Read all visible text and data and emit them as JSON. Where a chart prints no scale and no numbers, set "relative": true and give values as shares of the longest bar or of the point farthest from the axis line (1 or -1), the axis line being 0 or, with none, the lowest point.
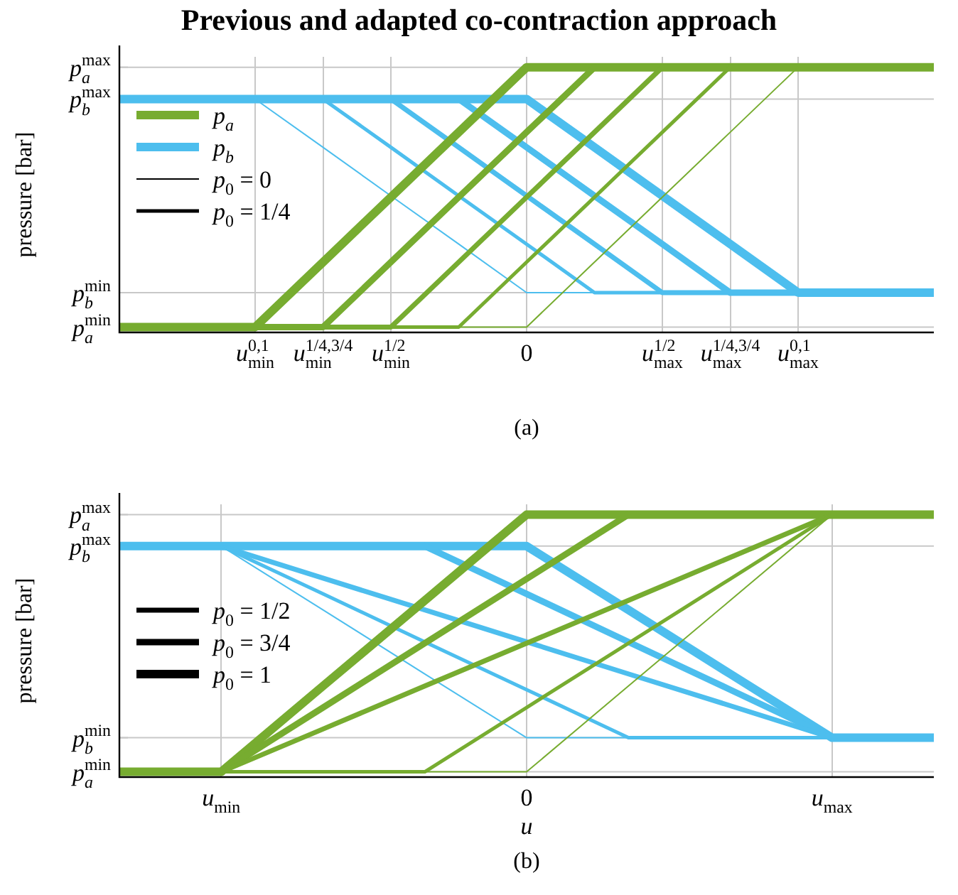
{
  "chart_data": [
    {
      "type": "line",
      "title": "Previous and adapted co-contraction approach",
      "ylabel": "pressure [bar]",
      "relative": true,
      "grid": "x",
      "legend": "top left",
      "marker": "none",
      "categories": [
        null,
        null,
        "u$_{min}$$^{0,1}$",
        "u$_{min}$$^{1/4,3/4}$",
        "u$_{min}$$^{1/2}$",
        null,
        "0",
        null,
        "u$_{max}$$^{1/2}$",
        "u$_{max}$$^{1/4,3/4}$",
        "u$_{max}$$^{0,1}$",
        null,
        null
      ],
      "ref_lines": [
        {
          "axis": "y",
          "value": 1,
          "label": "p$_{a}$$^{max}$",
          "color": "#c8c8c8"
        },
        {
          "axis": "y",
          "value": 0.88,
          "label": "p$_{b}$$^{max}$",
          "color": "#c8c8c8"
        },
        {
          "axis": "y",
          "value": 0.15,
          "label": "p$_{b}$$^{min}$",
          "color": "#c8c8c8"
        },
        {
          "axis": "y",
          "value": 0.02,
          "label": "p$_{a}$$^{min}$",
          "color": "#c8c8c8"
        }
      ],
      "series": [
        {
          "color": "#77ac30",
          "values": [
            0.02,
            0.02,
            0.02,
            0.02,
            0.02,
            0.02,
            0.02,
            0.265,
            0.51,
            0.755,
            1,
            1,
            1
          ]
        },
        {
          "color": "#77ac30",
          "values": [
            0.02,
            0.02,
            0.02,
            0.02,
            0.02,
            0.02,
            0.265,
            0.51,
            0.755,
            1,
            1,
            1,
            1
          ]
        },
        {
          "color": "#77ac30",
          "values": [
            0.02,
            0.02,
            0.02,
            0.02,
            0.02,
            0.265,
            0.51,
            0.755,
            1,
            1,
            1,
            1,
            1
          ]
        },
        {
          "color": "#77ac30",
          "values": [
            0.02,
            0.02,
            0.02,
            0.02,
            0.265,
            0.51,
            0.755,
            1,
            1,
            1,
            1,
            1,
            1
          ]
        },
        {
          "name": "p$_{a}$",
          "color": "#77ac30",
          "values": [
            0.02,
            0.02,
            0.02,
            0.265,
            0.51,
            0.755,
            1,
            1,
            1,
            1,
            1,
            1,
            1
          ]
        },
        {
          "color": "#4dbeee",
          "values": [
            0.88,
            0.88,
            0.88,
            0.698,
            0.515,
            0.333,
            0.15,
            0.15,
            0.15,
            0.15,
            0.15,
            0.15,
            0.15
          ]
        },
        {
          "color": "#4dbeee",
          "values": [
            0.88,
            0.88,
            0.88,
            0.88,
            0.698,
            0.515,
            0.333,
            0.15,
            0.15,
            0.15,
            0.15,
            0.15,
            0.15
          ]
        },
        {
          "color": "#4dbeee",
          "values": [
            0.88,
            0.88,
            0.88,
            0.88,
            0.88,
            0.698,
            0.515,
            0.333,
            0.15,
            0.15,
            0.15,
            0.15,
            0.15
          ]
        },
        {
          "color": "#4dbeee",
          "values": [
            0.88,
            0.88,
            0.88,
            0.88,
            0.88,
            0.88,
            0.698,
            0.515,
            0.333,
            0.15,
            0.15,
            0.15,
            0.15
          ]
        },
        {
          "name": "p$_{b}$",
          "color": "#4dbeee",
          "values": [
            0.88,
            0.88,
            0.88,
            0.88,
            0.88,
            0.88,
            0.88,
            0.698,
            0.515,
            0.333,
            0.15,
            0.15,
            0.15
          ]
        }
      ],
      "annotations": [
        "p$_{0}$ = 0",
        "p$_{0}$ = 1/4",
        "(a)"
      ]
    },
    {
      "type": "line",
      "ylabel": "pressure [bar]",
      "xlabel": "u",
      "relative": true,
      "grid": "x",
      "legend": "left",
      "marker": "none",
      "categories": [
        null,
        "u$_{min}$",
        null,
        null,
        "0",
        null,
        null,
        "u$_{max}$",
        null
      ],
      "ref_lines": [
        {
          "axis": "y",
          "value": 1,
          "label": "p$_{a}$$^{max}$",
          "color": "#c8c8c8"
        },
        {
          "axis": "y",
          "value": 0.88,
          "label": "p$_{b}$$^{max}$",
          "color": "#c8c8c8"
        },
        {
          "axis": "y",
          "value": 0.15,
          "label": "p$_{b}$$^{min}$",
          "color": "#c8c8c8"
        },
        {
          "axis": "y",
          "value": 0.02,
          "label": "p$_{a}$$^{min}$",
          "color": "#c8c8c8"
        }
      ],
      "series": [
        {
          "color": "#77ac30",
          "values": [
            0.02,
            0.02,
            0.02,
            0.02,
            0.02,
            0.347,
            0.673,
            1,
            1
          ]
        },
        {
          "color": "#77ac30",
          "values": [
            0.02,
            0.02,
            0.02,
            0.02,
            0.265,
            0.51,
            0.755,
            1,
            1
          ]
        },
        {
          "color": "#77ac30",
          "values": [
            0.02,
            0.02,
            0.183,
            0.347,
            0.51,
            0.673,
            0.837,
            1,
            1
          ]
        },
        {
          "color": "#77ac30",
          "values": [
            0.02,
            0.02,
            0.265,
            0.51,
            0.755,
            1,
            1,
            1,
            1
          ]
        },
        {
          "color": "#77ac30",
          "values": [
            0.02,
            0.02,
            0.347,
            0.673,
            1,
            1,
            1,
            1,
            1
          ]
        },
        {
          "color": "#4dbeee",
          "values": [
            0.88,
            0.88,
            0.637,
            0.393,
            0.15,
            0.15,
            0.15,
            0.15,
            0.15
          ]
        },
        {
          "color": "#4dbeee",
          "values": [
            0.88,
            0.88,
            0.698,
            0.515,
            0.333,
            0.15,
            0.15,
            0.15,
            0.15
          ]
        },
        {
          "color": "#4dbeee",
          "values": [
            0.88,
            0.88,
            0.758,
            0.637,
            0.515,
            0.393,
            0.272,
            0.15,
            0.15
          ]
        },
        {
          "color": "#4dbeee",
          "values": [
            0.88,
            0.88,
            0.88,
            0.88,
            0.698,
            0.515,
            0.333,
            0.15,
            0.15
          ]
        },
        {
          "color": "#4dbeee",
          "values": [
            0.88,
            0.88,
            0.88,
            0.88,
            0.88,
            0.637,
            0.393,
            0.15,
            0.15
          ]
        }
      ],
      "annotations": [
        "p$_{0}$ = 1/2",
        "p$_{0}$ = 3/4",
        "p$_{0}$ = 1",
        "(b)"
      ]
    }
  ]
}
